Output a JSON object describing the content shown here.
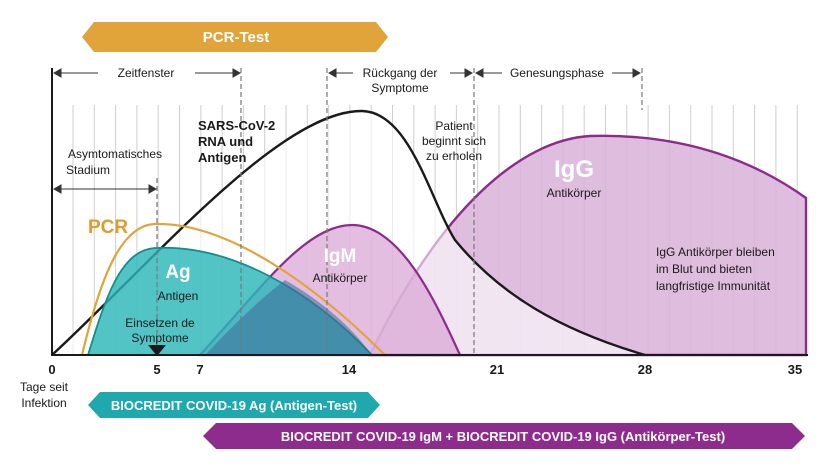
{
  "colors": {
    "pcr": "#E0A43A",
    "ag_fill": "#2CB7BA",
    "ag_test": "#1FA8AD",
    "igm": "#8B2C8C",
    "igm_test": "#8E2C8E",
    "igg_fill": "#D9B2D8",
    "virus_line": "#1a1a1a",
    "pcr_text": "#E09B2D"
  },
  "top_banner": {
    "label": "PCR-Test"
  },
  "phases": {
    "window": "Zeitfenster",
    "decline_line1": "Rückgang der",
    "decline_line2": "Symptome",
    "recovery": "Genesungsphase"
  },
  "annotations": {
    "asymptomatic_line1": "Asymtomatisches",
    "asymptomatic_line2": "Stadium",
    "virus_line1": "SARS-CoV-2",
    "virus_line2": "RNA und",
    "virus_line3": "Antigen",
    "patient_line1": "Patient",
    "patient_line2": "beginnt sich",
    "patient_line3": "zu erholen",
    "pcr": "PCR",
    "ag_title": "Ag",
    "ag_sub": "Antigen",
    "onset_line1": "Einsetzen de",
    "onset_line2": "Symptome",
    "igm_title": "IgM",
    "igm_sub": "Antikörper",
    "igg_title": "IgG",
    "igg_sub": "Antikörper",
    "igg_note_line1": "IgG Antikörper bleiben",
    "igg_note_line2": "im Blut und bieten",
    "igg_note_line3": "langfristige Immunität"
  },
  "x_axis": {
    "caption_line1": "Tage seit",
    "caption_line2": "Infektion",
    "ticks": [
      "0",
      "5",
      "7",
      "14",
      "21",
      "28",
      "35"
    ]
  },
  "bottom_banners": {
    "antigen_test": "BIOCREDIT COVID-19 Ag (Antigen-Test)",
    "antibody_test": "BIOCREDIT COVID-19 IgM  + BIOCREDIT COVID-19 IgG (Antikörper-Test)"
  }
}
